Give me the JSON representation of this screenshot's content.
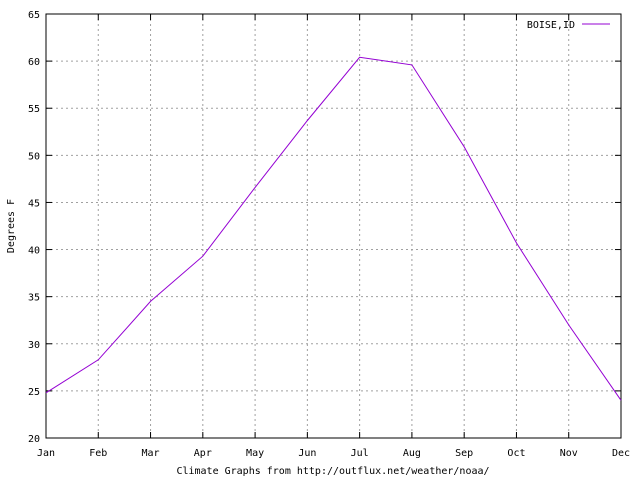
{
  "chart_data": {
    "type": "line",
    "categories": [
      "Jan",
      "Feb",
      "Mar",
      "Apr",
      "May",
      "Jun",
      "Jul",
      "Aug",
      "Sep",
      "Oct",
      "Nov",
      "Dec"
    ],
    "series": [
      {
        "name": "BOISE,ID",
        "color": "#9400d3",
        "values": [
          24.8,
          28.3,
          34.5,
          39.3,
          46.6,
          53.7,
          60.4,
          59.6,
          50.9,
          40.7,
          32.0,
          24.0
        ]
      }
    ],
    "title": "",
    "xlabel": "Climate Graphs from http://outflux.net/weather/noaa/",
    "ylabel": "Degrees F",
    "ylim": [
      20,
      65
    ],
    "yticks": [
      20,
      25,
      30,
      35,
      40,
      45,
      50,
      55,
      60,
      65
    ],
    "grid": true,
    "legend_position": "top-right"
  }
}
